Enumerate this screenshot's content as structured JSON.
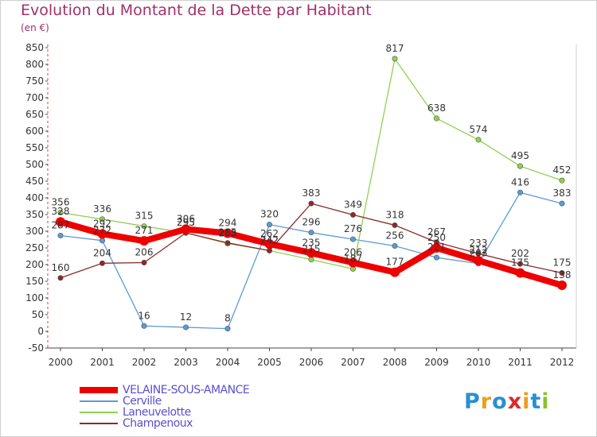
{
  "title": "Evolution du Montant de la Dette par Habitant",
  "unit": "(en €)",
  "logo": {
    "text": "Proxiti",
    "colors": [
      "#2a8fd0",
      "#e8a020",
      "#2a8fd0",
      "#e02828",
      "#e8a020",
      "#2a8fd0",
      "#8fc030"
    ]
  },
  "chart_data": {
    "type": "line",
    "x": [
      "2000",
      "2001",
      "2002",
      "2003",
      "2004",
      "2005",
      "2006",
      "2007",
      "2008",
      "2009",
      "2010",
      "2011",
      "2012"
    ],
    "ylim": [
      -50,
      850
    ],
    "yticks": [
      -50,
      0,
      50,
      100,
      150,
      200,
      250,
      300,
      350,
      400,
      450,
      500,
      550,
      600,
      650,
      700,
      750,
      800,
      850
    ],
    "grid": false,
    "legend_position": "bottom-left",
    "series": [
      {
        "name": "VELAINE-SOUS-AMANCE",
        "color": "#ee0000",
        "width": 8,
        "marker": 6,
        "values": [
          328,
          292,
          271,
          306,
          294,
          262,
          235,
          206,
          177,
          250,
          212,
          175,
          138
        ],
        "labels": [
          "328",
          "292",
          "271",
          "306",
          "294",
          "262",
          "235",
          "206",
          "177",
          "250",
          "212",
          "175",
          "138"
        ]
      },
      {
        "name": "Cerville",
        "color": "#5b9bd5",
        "width": 1.3,
        "marker": 3.2,
        "values": [
          287,
          272,
          16,
          12,
          8,
          320,
          296,
          276,
          256,
          221,
          203,
          416,
          383
        ],
        "labels": [
          "287",
          "272",
          "16",
          "12",
          "8",
          "320",
          "296",
          "276",
          "256",
          "221",
          "203",
          "416",
          "383"
        ]
      },
      {
        "name": "Laneuvelotte",
        "color": "#8fd14f",
        "width": 1.3,
        "marker": 3.2,
        "values": [
          356,
          336,
          315,
          295,
          263,
          242,
          215,
          187,
          817,
          638,
          574,
          495,
          452
        ],
        "labels": [
          "356",
          "336",
          "315",
          "295",
          "263",
          "242",
          "215",
          "187",
          "817",
          "638",
          "574",
          "495",
          "452"
        ]
      },
      {
        "name": "Champenoux",
        "color": "#8b2a2a",
        "width": 1.3,
        "marker": 3.2,
        "values": [
          160,
          204,
          206,
          295,
          265,
          242,
          383,
          349,
          318,
          267,
          233,
          202,
          175
        ],
        "labels": [
          "160",
          "204",
          "206",
          "295",
          "265",
          "242",
          "383",
          "349",
          "318",
          "267",
          "233",
          "202",
          "175"
        ]
      }
    ]
  }
}
